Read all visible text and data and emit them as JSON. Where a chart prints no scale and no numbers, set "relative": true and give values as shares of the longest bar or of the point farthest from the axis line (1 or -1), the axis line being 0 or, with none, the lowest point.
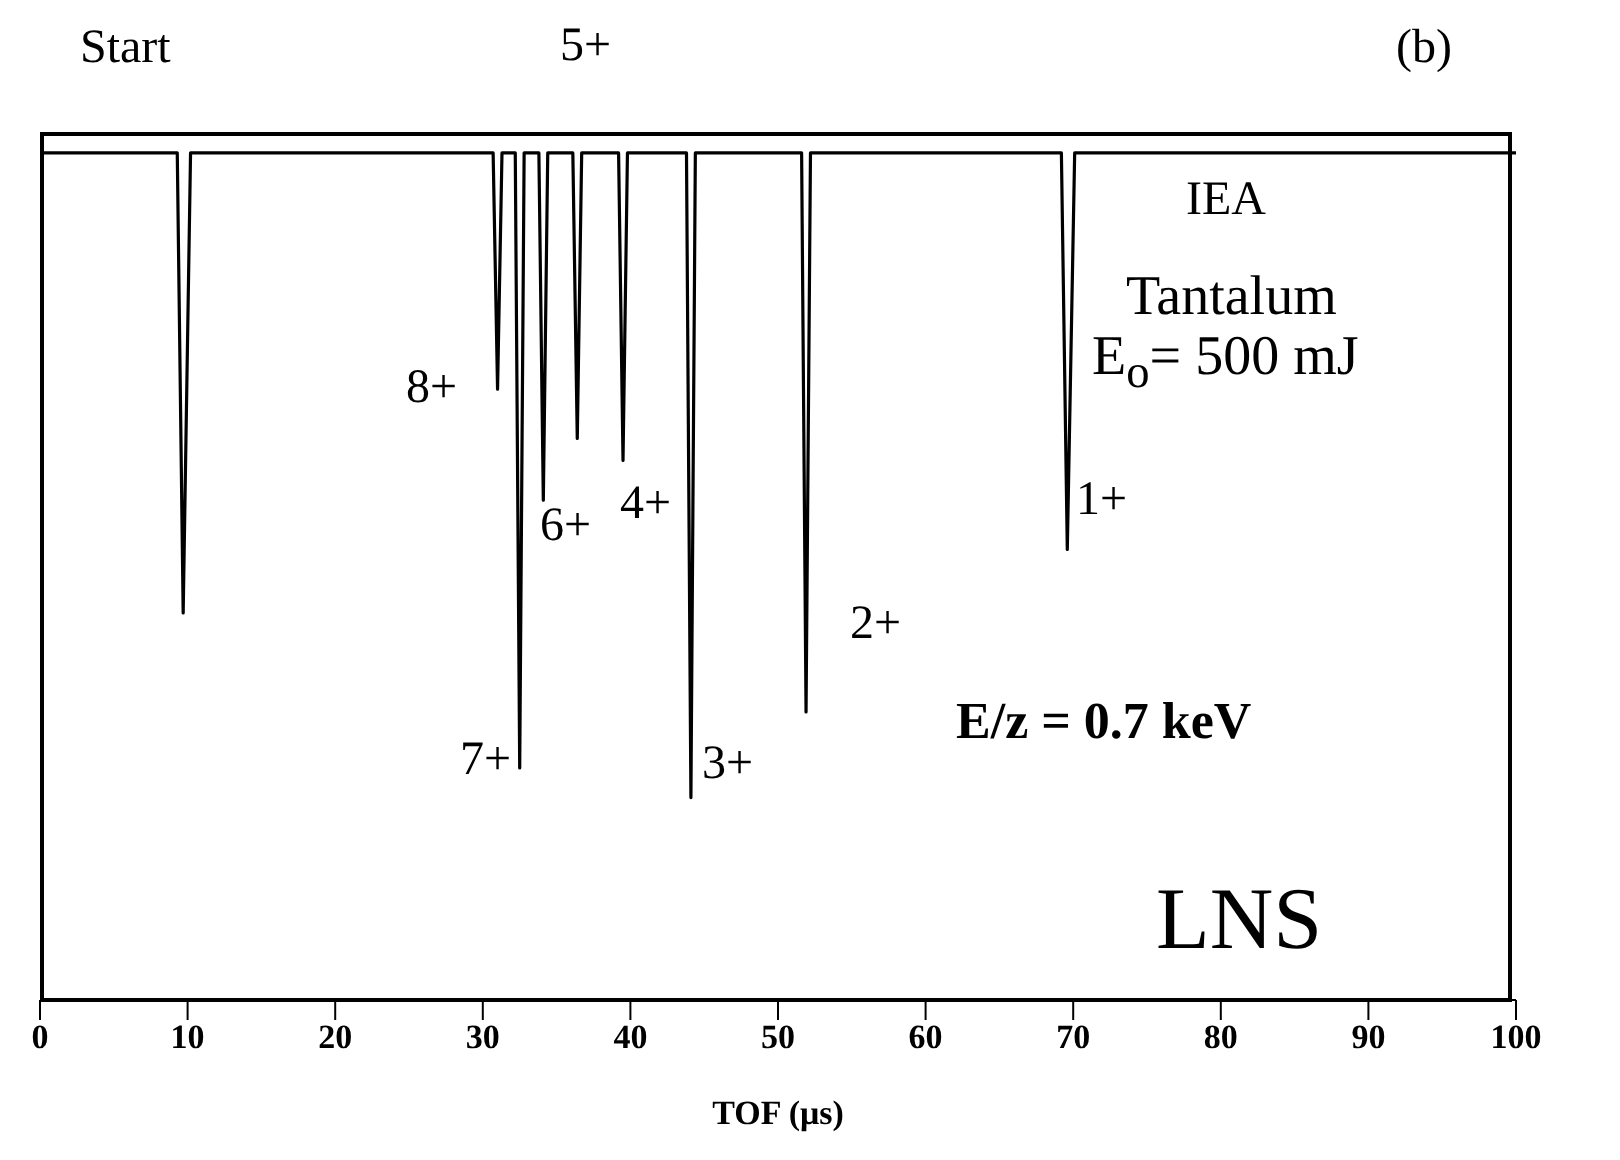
{
  "chart_data": {
    "type": "line",
    "relative": true,
    "xlabel": "TOF (μs)",
    "xlim": [
      0,
      100
    ],
    "xticks": [
      0,
      10,
      20,
      30,
      40,
      50,
      60,
      70,
      80,
      90,
      100
    ],
    "marker": "none",
    "line_style": "solid",
    "series": [
      {
        "color": "#000000",
        "x": [
          0,
          9.3,
          9.7,
          10.2,
          30.7,
          31.0,
          31.3,
          32.2,
          32.5,
          32.8,
          33.8,
          34.1,
          34.4,
          36.1,
          36.4,
          36.7,
          39.2,
          39.5,
          39.8,
          43.8,
          44.1,
          44.4,
          51.6,
          51.9,
          52.2,
          69.2,
          69.6,
          70.1,
          100
        ],
        "values": [
          1,
          1,
          0.457,
          1,
          1,
          0.721,
          1,
          1,
          0.274,
          1,
          1,
          0.59,
          1,
          1,
          0.663,
          1,
          1,
          0.637,
          1,
          1,
          0.239,
          1,
          1,
          0.34,
          1,
          1,
          0.532,
          1,
          1
        ]
      }
    ],
    "annotations": [
      "8+",
      "7+",
      "6+",
      "5+",
      "4+",
      "3+",
      "2+",
      "1+",
      "Start",
      "(b)",
      "IEA",
      "Tantalum",
      "E$_{o}$= 500 mJ",
      "E/z = 0.7 keV",
      "LNS"
    ]
  }
}
